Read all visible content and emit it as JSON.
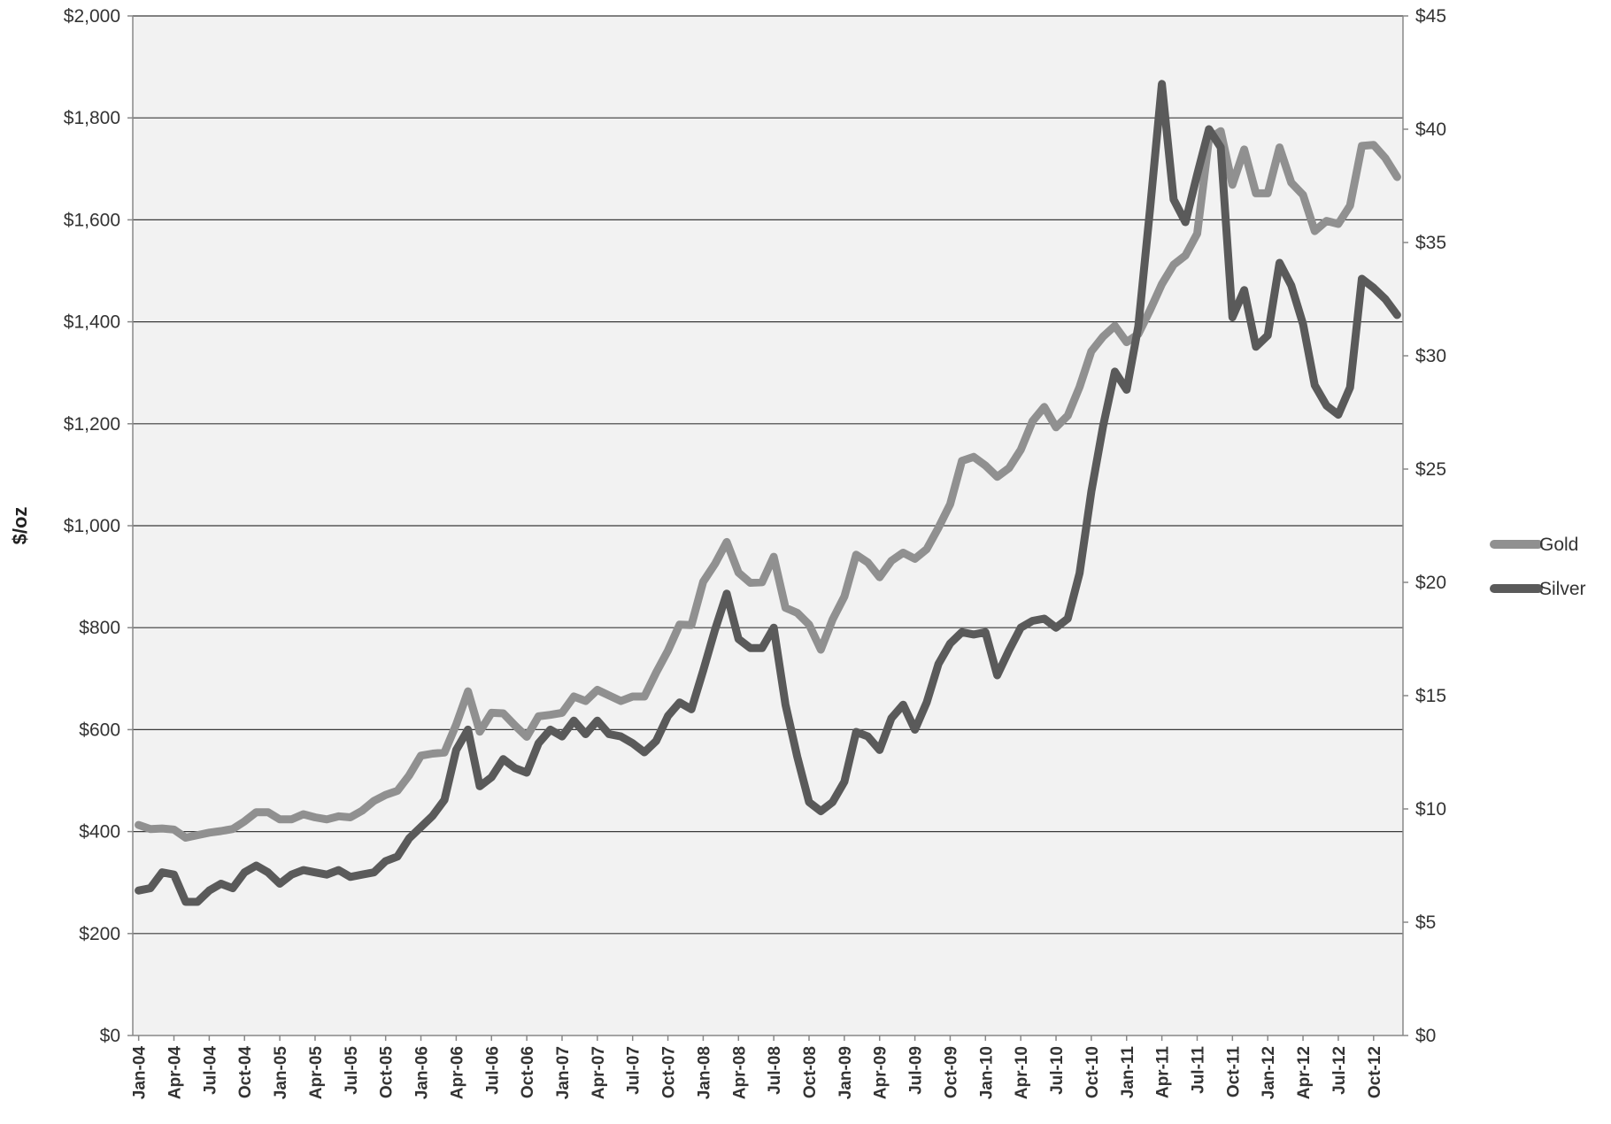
{
  "chart_data": {
    "type": "line",
    "ylabel": "$/oz",
    "left_axis": {
      "ylim": [
        0,
        2000
      ],
      "ticks": [
        "$0",
        "$200",
        "$400",
        "$600",
        "$800",
        "$1,000",
        "$1,200",
        "$1,400",
        "$1,600",
        "$1,800",
        "$2,000"
      ]
    },
    "right_axis": {
      "ylim": [
        0,
        45
      ],
      "ticks": [
        "$0",
        "$5",
        "$10",
        "$15",
        "$20",
        "$25",
        "$30",
        "$35",
        "$40",
        "$45"
      ]
    },
    "x_tick_labels": [
      "Jan-04",
      "Apr-04",
      "Jul-04",
      "Oct-04",
      "Jan-05",
      "Apr-05",
      "Jul-05",
      "Oct-05",
      "Jan-06",
      "Apr-06",
      "Jul-06",
      "Oct-06",
      "Jan-07",
      "Apr-07",
      "Jul-07",
      "Oct-07",
      "Jan-08",
      "Apr-08",
      "Jul-08",
      "Oct-08",
      "Jan-09",
      "Apr-09",
      "Jul-09",
      "Oct-09",
      "Jan-10",
      "Apr-10",
      "Jul-10",
      "Oct-10",
      "Jan-11",
      "Apr-11",
      "Jul-11",
      "Oct-11",
      "Jan-12",
      "Apr-12",
      "Jul-12",
      "Oct-12"
    ],
    "grid": true,
    "legend_position": "right",
    "colors": {
      "Gold": "#909090",
      "Silver": "#5a5a5a"
    },
    "series": [
      {
        "name": "Gold",
        "axis": "left",
        "values": [
          413,
          405,
          406,
          404,
          388,
          393,
          398,
          401,
          405,
          420,
          438,
          438,
          424,
          424,
          434,
          428,
          424,
          430,
          428,
          441,
          460,
          472,
          480,
          510,
          549,
          553,
          555,
          610,
          675,
          596,
          633,
          632,
          608,
          586,
          626,
          629,
          633,
          665,
          656,
          678,
          667,
          656,
          665,
          665,
          712,
          755,
          806,
          805,
          890,
          925,
          968,
          908,
          888,
          889,
          939,
          839,
          829,
          806,
          757,
          816,
          861,
          943,
          928,
          899,
          931,
          947,
          935,
          954,
          996,
          1042,
          1127,
          1135,
          1118,
          1096,
          1113,
          1149,
          1205,
          1233,
          1193,
          1216,
          1272,
          1342,
          1371,
          1392,
          1360,
          1376,
          1423,
          1474,
          1512,
          1530,
          1573,
          1759,
          1774,
          1669,
          1738,
          1652,
          1652,
          1742,
          1673,
          1649,
          1578,
          1598,
          1592,
          1628,
          1745,
          1747,
          1721,
          1684
        ]
      },
      {
        "name": "Silver",
        "axis": "right",
        "values": [
          6.4,
          6.5,
          7.2,
          7.1,
          5.9,
          5.9,
          6.4,
          6.7,
          6.5,
          7.2,
          7.5,
          7.2,
          6.7,
          7.1,
          7.3,
          7.2,
          7.1,
          7.3,
          7.0,
          7.1,
          7.2,
          7.7,
          7.9,
          8.7,
          9.2,
          9.7,
          10.4,
          12.6,
          13.5,
          11.0,
          11.4,
          12.2,
          11.8,
          11.6,
          12.9,
          13.5,
          13.2,
          13.9,
          13.3,
          13.9,
          13.3,
          13.2,
          12.9,
          12.5,
          13.0,
          14.1,
          14.7,
          14.4,
          16.1,
          17.9,
          19.5,
          17.5,
          17.1,
          17.1,
          18.0,
          14.6,
          12.3,
          10.3,
          9.9,
          10.3,
          11.2,
          13.4,
          13.2,
          12.6,
          14.0,
          14.6,
          13.5,
          14.7,
          16.4,
          17.3,
          17.8,
          17.7,
          17.8,
          15.9,
          17.0,
          18.0,
          18.3,
          18.4,
          18.0,
          18.4,
          20.4,
          24.0,
          26.9,
          29.3,
          28.5,
          31.3,
          36.5,
          42.0,
          36.9,
          35.9,
          38.0,
          40.0,
          39.2,
          31.7,
          32.9,
          30.4,
          30.9,
          34.1,
          33.1,
          31.4,
          28.7,
          27.8,
          27.4,
          28.6,
          33.4,
          33.0,
          32.5,
          31.8
        ]
      }
    ]
  }
}
